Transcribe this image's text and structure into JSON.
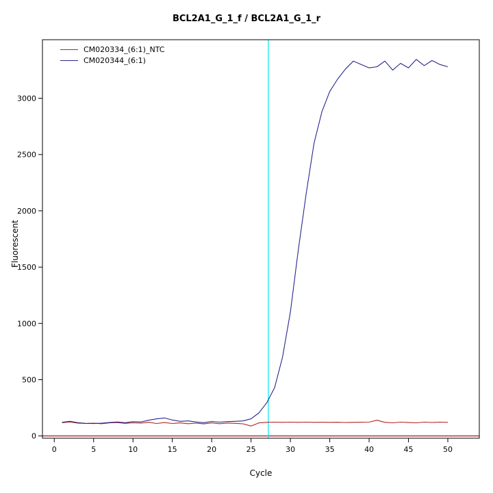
{
  "chart_data": {
    "type": "line",
    "title": "BCL2A1_G_1_f / BCL2A1_G_1_r",
    "xlabel": "Cycle",
    "ylabel": "Fluorescent",
    "x_ticks": [
      0,
      5,
      10,
      15,
      20,
      25,
      30,
      35,
      40,
      45,
      50
    ],
    "y_ticks": [
      0,
      500,
      1000,
      1500,
      2000,
      2500,
      3000
    ],
    "xlim": [
      -1.5,
      54.0
    ],
    "ylim": [
      -20,
      3520
    ],
    "grid": false,
    "legend_position": "top-left",
    "x": [
      1,
      2,
      3,
      4,
      5,
      6,
      7,
      8,
      9,
      10,
      11,
      12,
      13,
      14,
      15,
      16,
      17,
      18,
      19,
      20,
      21,
      22,
      23,
      24,
      25,
      26,
      27,
      28,
      29,
      30,
      31,
      32,
      33,
      34,
      35,
      36,
      37,
      38,
      39,
      40,
      41,
      42,
      43,
      44,
      45,
      46,
      47,
      48,
      49,
      50
    ],
    "series": [
      {
        "name": "CM020334_(6:1)_NTC",
        "color": "#b22222",
        "values": [
          118,
          125,
          114,
          111,
          113,
          109,
          116,
          119,
          112,
          117,
          114,
          122,
          111,
          119,
          111,
          116,
          109,
          114,
          107,
          116,
          109,
          115,
          112,
          108,
          88,
          116,
          121,
          123,
          121,
          123,
          121,
          123,
          121,
          122,
          121,
          122,
          120,
          121,
          122,
          123,
          140,
          121,
          117,
          123,
          119,
          117,
          123,
          120,
          123,
          121
        ]
      },
      {
        "name": "CM020344_(6:1)",
        "color": "#26268c",
        "values": [
          122,
          130,
          118,
          112,
          110,
          113,
          119,
          124,
          118,
          127,
          124,
          140,
          152,
          160,
          142,
          130,
          134,
          124,
          118,
          129,
          123,
          128,
          130,
          134,
          152,
          205,
          295,
          430,
          700,
          1100,
          1650,
          2150,
          2600,
          2880,
          3060,
          3170,
          3260,
          3330,
          3300,
          3270,
          3280,
          3330,
          3250,
          3310,
          3270,
          3345,
          3290,
          3335,
          3300,
          3280
        ]
      }
    ],
    "threshold_line": {
      "y": 0,
      "color": "#8b0000"
    },
    "vline": {
      "x": 27.2,
      "color": "#00e5ee"
    }
  }
}
